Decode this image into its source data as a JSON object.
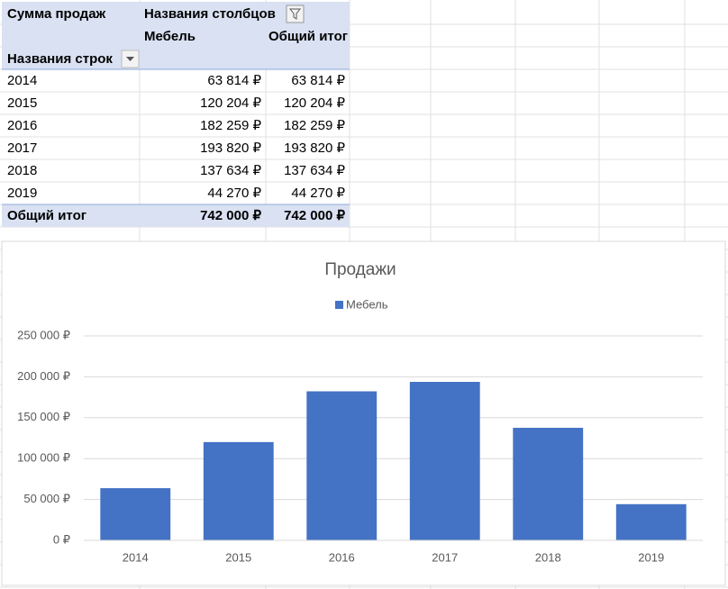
{
  "table": {
    "corner": "Сумма продаж",
    "col_header": "Названия столбцов",
    "row_header": "Названия строк",
    "columns": [
      "Мебель",
      "Общий итог"
    ],
    "rows": [
      [
        "2014",
        "63 814 ₽",
        "63 814 ₽"
      ],
      [
        "2015",
        "120 204 ₽",
        "120 204 ₽"
      ],
      [
        "2016",
        "182 259 ₽",
        "182 259 ₽"
      ],
      [
        "2017",
        "193 820 ₽",
        "193 820 ₽"
      ],
      [
        "2018",
        "137 634 ₽",
        "137 634 ₽"
      ],
      [
        "2019",
        "44 270 ₽",
        "44 270 ₽"
      ]
    ],
    "total": [
      "Общий итог",
      "742 000 ₽",
      "742 000 ₽"
    ]
  },
  "chart_data": {
    "type": "bar",
    "title": "Продажи",
    "categories": [
      "2014",
      "2015",
      "2016",
      "2017",
      "2018",
      "2019"
    ],
    "series": [
      {
        "name": "Мебель",
        "color": "#4472c4",
        "values": [
          63814,
          120204,
          182259,
          193820,
          137634,
          44270
        ]
      }
    ],
    "ylim": [
      0,
      250000
    ],
    "yticks": [
      {
        "value": 0,
        "label": "0 ₽"
      },
      {
        "value": 50000,
        "label": "50 000 ₽"
      },
      {
        "value": 100000,
        "label": "100 000 ₽"
      },
      {
        "value": 150000,
        "label": "150 000 ₽"
      },
      {
        "value": 200000,
        "label": "200 000 ₽"
      },
      {
        "value": 250000,
        "label": "250 000 ₽"
      }
    ],
    "grid": true,
    "legend": "top"
  }
}
